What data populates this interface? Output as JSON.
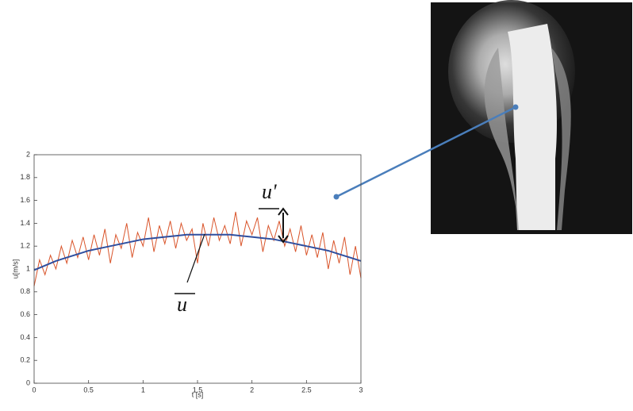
{
  "chart_data": {
    "type": "line",
    "xlabel": "t [s]",
    "ylabel": "u[m/s]",
    "xlim": [
      0,
      3
    ],
    "ylim": [
      0,
      2
    ],
    "xticks": [
      0,
      0.5,
      1,
      1.5,
      2,
      2.5,
      3
    ],
    "yticks": [
      0,
      0.2,
      0.4,
      0.6,
      0.8,
      1,
      1.2,
      1.4,
      1.6,
      1.8,
      2
    ],
    "annotations": [
      "u'",
      "u"
    ],
    "series": [
      {
        "color": "#d9542a",
        "x": [
          0,
          0.05,
          0.1,
          0.15,
          0.2,
          0.25,
          0.3,
          0.35,
          0.4,
          0.45,
          0.5,
          0.55,
          0.6,
          0.65,
          0.7,
          0.75,
          0.8,
          0.85,
          0.9,
          0.95,
          1,
          1.05,
          1.1,
          1.15,
          1.2,
          1.25,
          1.3,
          1.35,
          1.4,
          1.45,
          1.5,
          1.55,
          1.6,
          1.65,
          1.7,
          1.75,
          1.8,
          1.85,
          1.9,
          1.95,
          2,
          2.05,
          2.1,
          2.15,
          2.2,
          2.25,
          2.3,
          2.35,
          2.4,
          2.45,
          2.5,
          2.55,
          2.6,
          2.65,
          2.7,
          2.75,
          2.8,
          2.85,
          2.9,
          2.95,
          3
        ],
        "values": [
          0.85,
          1.08,
          0.95,
          1.12,
          1.0,
          1.2,
          1.05,
          1.25,
          1.1,
          1.28,
          1.08,
          1.3,
          1.12,
          1.35,
          1.05,
          1.3,
          1.18,
          1.4,
          1.1,
          1.32,
          1.2,
          1.45,
          1.15,
          1.38,
          1.22,
          1.42,
          1.18,
          1.4,
          1.25,
          1.35,
          1.05,
          1.4,
          1.2,
          1.45,
          1.25,
          1.38,
          1.22,
          1.5,
          1.2,
          1.42,
          1.3,
          1.45,
          1.15,
          1.38,
          1.25,
          1.42,
          1.2,
          1.35,
          1.15,
          1.38,
          1.12,
          1.3,
          1.1,
          1.32,
          1.0,
          1.25,
          1.05,
          1.28,
          0.95,
          1.2,
          0.92
        ]
      },
      {
        "color": "#2f4f9f",
        "x": [
          0,
          0.1,
          0.2,
          0.3,
          0.4,
          0.5,
          0.6,
          0.7,
          0.8,
          0.9,
          1,
          1.1,
          1.2,
          1.3,
          1.4,
          1.5,
          1.6,
          1.7,
          1.8,
          1.9,
          2,
          2.1,
          2.2,
          2.3,
          2.4,
          2.5,
          2.6,
          2.7,
          2.8,
          2.9,
          3
        ],
        "values": [
          0.99,
          1.03,
          1.07,
          1.1,
          1.13,
          1.16,
          1.18,
          1.2,
          1.22,
          1.24,
          1.26,
          1.27,
          1.28,
          1.29,
          1.3,
          1.3,
          1.3,
          1.3,
          1.3,
          1.29,
          1.28,
          1.27,
          1.26,
          1.24,
          1.22,
          1.2,
          1.18,
          1.16,
          1.13,
          1.1,
          1.07
        ]
      }
    ]
  }
}
